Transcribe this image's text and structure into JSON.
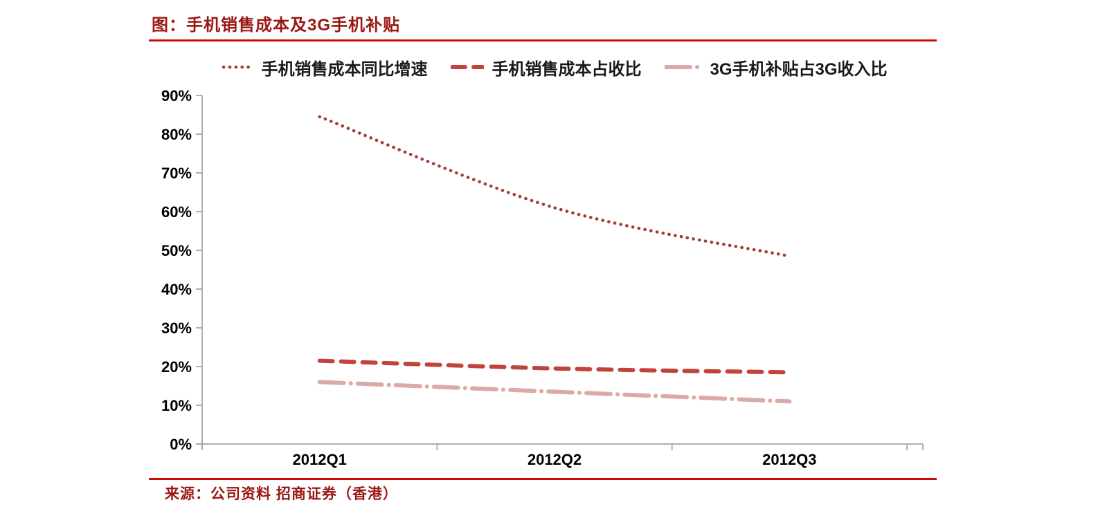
{
  "page": {
    "title": "图：手机销售成本及3G手机补贴",
    "source": "来源：公司资料 招商证券（香港）",
    "title_color": "#9a1712",
    "rule_color": "#c90b05",
    "axis_color": "#a3a3a3",
    "label_color": "#000000"
  },
  "chart_data": {
    "type": "line",
    "title": "手机销售成本及3G手机补贴",
    "categories": [
      "2012Q1",
      "2012Q2",
      "2012Q3"
    ],
    "series": [
      {
        "name": "手机销售成本同比增速",
        "style": "dotted",
        "color": "#a23b38",
        "values": [
          84.5,
          61.0,
          48.5
        ]
      },
      {
        "name": "手机销售成本占收比",
        "style": "dashed",
        "color": "#c2423c",
        "values": [
          21.5,
          19.5,
          18.5
        ]
      },
      {
        "name": "3G手机补贴占3G收入比",
        "style": "long-dash-dot",
        "color": "#dba9a6",
        "values": [
          16.0,
          13.5,
          11.0
        ]
      }
    ],
    "ylim": [
      0,
      90
    ],
    "ytick_step": 10,
    "ytick_labels": [
      "0%",
      "10%",
      "20%",
      "30%",
      "40%",
      "50%",
      "60%",
      "70%",
      "80%",
      "90%"
    ],
    "xlabel": "",
    "ylabel": "",
    "grid": false,
    "legend_position": "top",
    "curve": "smooth"
  }
}
